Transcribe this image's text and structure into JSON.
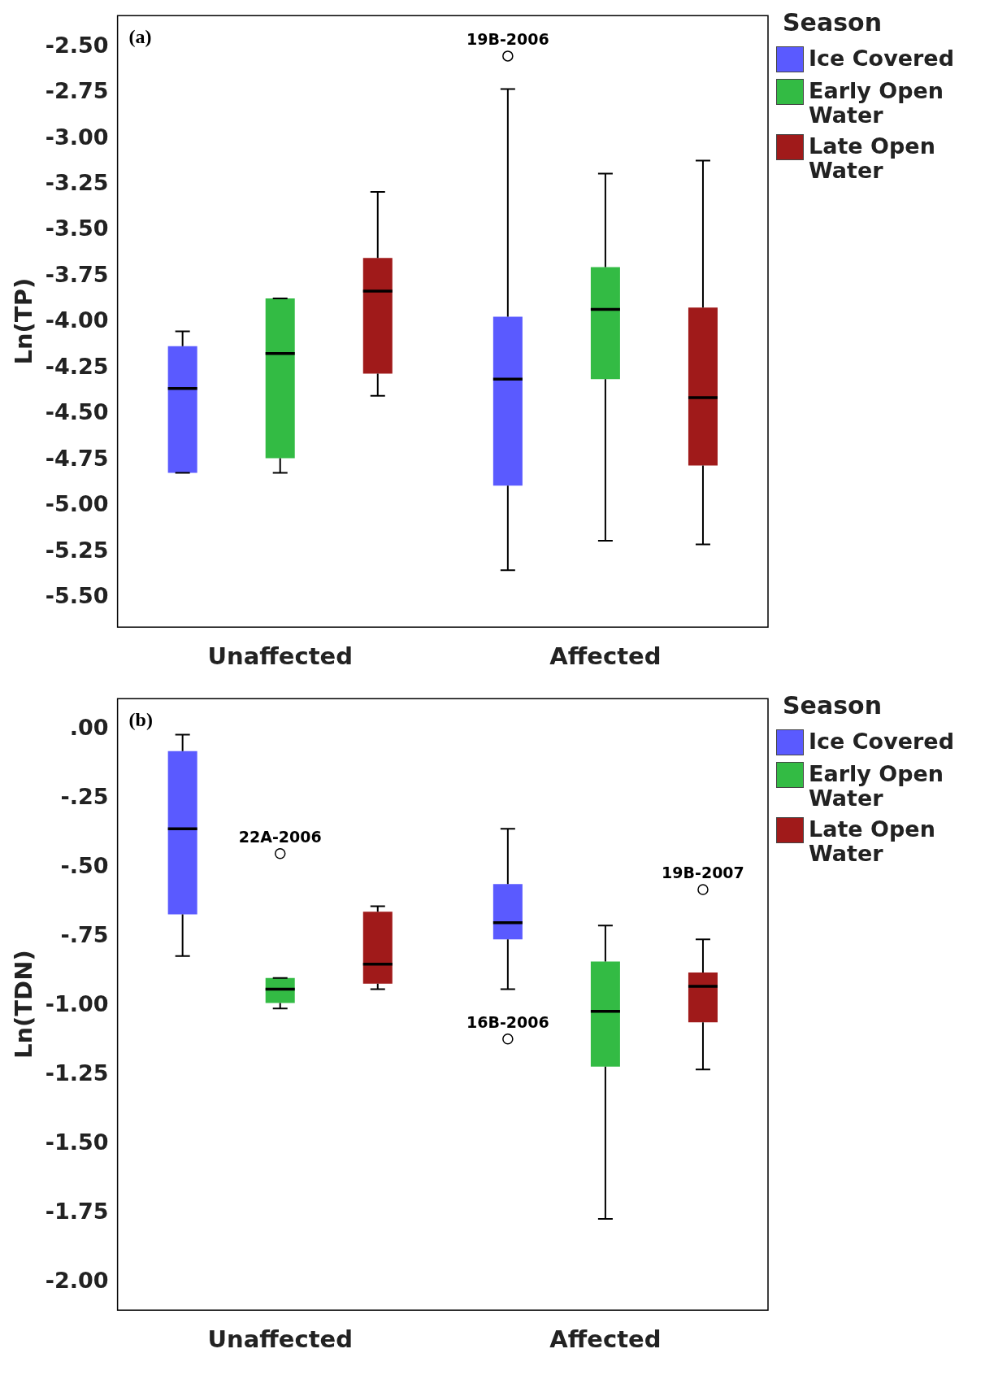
{
  "chart_data": [
    {
      "type": "box",
      "title": "(a)",
      "ylabel": "Ln(TP)",
      "legend_title": "Season",
      "legend": "right",
      "categories": [
        "Unaffected",
        "Affected"
      ],
      "ylim": [
        -5.66,
        -2.33
      ],
      "yticks": [
        {
          "value": -2.5,
          "label": "-2.50"
        },
        {
          "value": -2.75,
          "label": "-2.75"
        },
        {
          "value": -3,
          "label": "-3.00"
        },
        {
          "value": -3.25,
          "label": "-3.25"
        },
        {
          "value": -3.5,
          "label": "-3.50"
        },
        {
          "value": -3.75,
          "label": "-3.75"
        },
        {
          "value": -4,
          "label": "-4.00"
        },
        {
          "value": -4.25,
          "label": "-4.25"
        },
        {
          "value": -4.5,
          "label": "-4.50"
        },
        {
          "value": -4.75,
          "label": "-4.75"
        },
        {
          "value": -5,
          "label": "-5.00"
        },
        {
          "value": -5.25,
          "label": "-5.25"
        },
        {
          "value": -5.5,
          "label": "-5.50"
        }
      ],
      "series": [
        {
          "name": "Ice Covered",
          "color": "#5a5aff",
          "boxes": [
            {
              "low": -4.82,
              "q1": -4.82,
              "median": -4.36,
              "q3": -4.13,
              "high": -4.05
            },
            {
              "low": -5.35,
              "q1": -4.89,
              "median": -4.31,
              "q3": -3.97,
              "high": -2.73,
              "outliers": [
                -2.55
              ]
            }
          ]
        },
        {
          "name": "Early Open Water",
          "color": "#33bb44",
          "boxes": [
            {
              "low": -4.82,
              "q1": -4.74,
              "median": -4.17,
              "q3": -3.87,
              "high": -3.87
            },
            {
              "low": -5.19,
              "q1": -4.31,
              "median": -3.93,
              "q3": -3.7,
              "high": -3.19
            }
          ]
        },
        {
          "name": "Late Open Water",
          "color": "#a01a1a",
          "boxes": [
            {
              "low": -4.4,
              "q1": -4.28,
              "median": -3.83,
              "q3": -3.65,
              "high": -3.29
            },
            {
              "low": -5.21,
              "q1": -4.78,
              "median": -4.41,
              "q3": -3.92,
              "high": -3.12
            }
          ]
        }
      ],
      "annotations": [
        "19B-2006"
      ]
    },
    {
      "type": "box",
      "title": "(b)",
      "ylabel": "Ln(TDN)",
      "legend_title": "Season",
      "legend": "right",
      "categories": [
        "Unaffected",
        "Affected"
      ],
      "ylim": [
        -2.1,
        0.11
      ],
      "yticks": [
        {
          "value": 0,
          "label": ".00"
        },
        {
          "value": -0.25,
          "label": "-.25"
        },
        {
          "value": -0.5,
          "label": "-.50"
        },
        {
          "value": -0.75,
          "label": "-.75"
        },
        {
          "value": -1,
          "label": "-1.00"
        },
        {
          "value": -1.25,
          "label": "-1.25"
        },
        {
          "value": -1.5,
          "label": "-1.50"
        },
        {
          "value": -1.75,
          "label": "-1.75"
        },
        {
          "value": -2,
          "label": "-2.00"
        }
      ],
      "series": [
        {
          "name": "Ice Covered",
          "color": "#5a5aff",
          "boxes": [
            {
              "low": -0.82,
              "q1": -0.67,
              "median": -0.36,
              "q3": -0.08,
              "high": -0.02
            },
            {
              "low": -0.94,
              "q1": -0.76,
              "median": -0.7,
              "q3": -0.56,
              "high": -0.36,
              "outliers": [
                -1.12
              ]
            }
          ]
        },
        {
          "name": "Early Open Water",
          "color": "#33bb44",
          "boxes": [
            {
              "low": -1.01,
              "q1": -0.99,
              "median": -0.94,
              "q3": -0.9,
              "high": -0.9,
              "outliers": [
                -0.45
              ]
            },
            {
              "low": -1.77,
              "q1": -1.22,
              "median": -1.02,
              "q3": -0.84,
              "high": -0.71
            }
          ]
        },
        {
          "name": "Late Open Water",
          "color": "#a01a1a",
          "boxes": [
            {
              "low": -0.94,
              "q1": -0.92,
              "median": -0.85,
              "q3": -0.66,
              "high": -0.64
            },
            {
              "low": -1.23,
              "q1": -1.06,
              "median": -0.93,
              "q3": -0.88,
              "high": -0.76,
              "outliers": [
                -0.58
              ]
            }
          ]
        }
      ],
      "annotations": [
        "22A-2006",
        "16B-2006",
        "19B-2007"
      ]
    }
  ]
}
